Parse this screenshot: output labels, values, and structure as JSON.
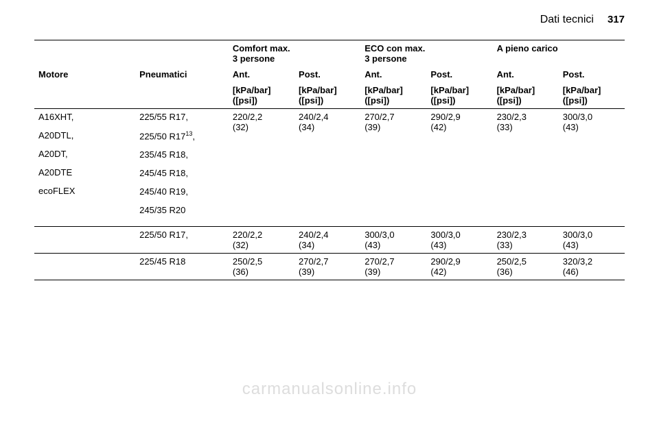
{
  "header": {
    "section_title": "Dati tecnici",
    "page_number": "317"
  },
  "table": {
    "group_headers": {
      "comfort": "Comfort max.\n3 persone",
      "eco": "ECO con max.\n3 persone",
      "full": "A pieno carico"
    },
    "col_headers": {
      "engine": "Motore",
      "tires": "Pneumatici",
      "front": "Ant.",
      "rear": "Post."
    },
    "unit_header": "[kPa/bar]\n([psi])",
    "engines": [
      "A16XHT,",
      "A20DTL,",
      "A20DT,",
      "A20DTE",
      "ecoFLEX"
    ],
    "rows": [
      {
        "tires": [
          "225/55 R17,",
          "",
          "225/50 R17",
          "235/45 R18,",
          "245/45 R18,",
          "245/40 R19,",
          "245/35 R20"
        ],
        "tire_sup": "13",
        "comfort_front": "220/2,2\n(32)",
        "comfort_rear": "240/2,4\n(34)",
        "eco_front": "270/2,7\n(39)",
        "eco_rear": "290/2,9\n(42)",
        "full_front": "230/2,3\n(33)",
        "full_rear": "300/3,0\n(43)"
      },
      {
        "tires": [
          "225/50 R17,"
        ],
        "comfort_front": "220/2,2\n(32)",
        "comfort_rear": "240/2,4\n(34)",
        "eco_front": "300/3,0\n(43)",
        "eco_rear": "300/3,0\n(43)",
        "full_front": "230/2,3\n(33)",
        "full_rear": "300/3,0\n(43)"
      },
      {
        "tires": [
          "225/45 R18"
        ],
        "comfort_front": "250/2,5\n(36)",
        "comfort_rear": "270/2,7\n(39)",
        "eco_front": "270/2,7\n(39)",
        "eco_rear": "290/2,9\n(42)",
        "full_front": "250/2,5\n(36)",
        "full_rear": "320/3,2\n(46)"
      }
    ]
  },
  "watermark": "carmanualsonline.info"
}
